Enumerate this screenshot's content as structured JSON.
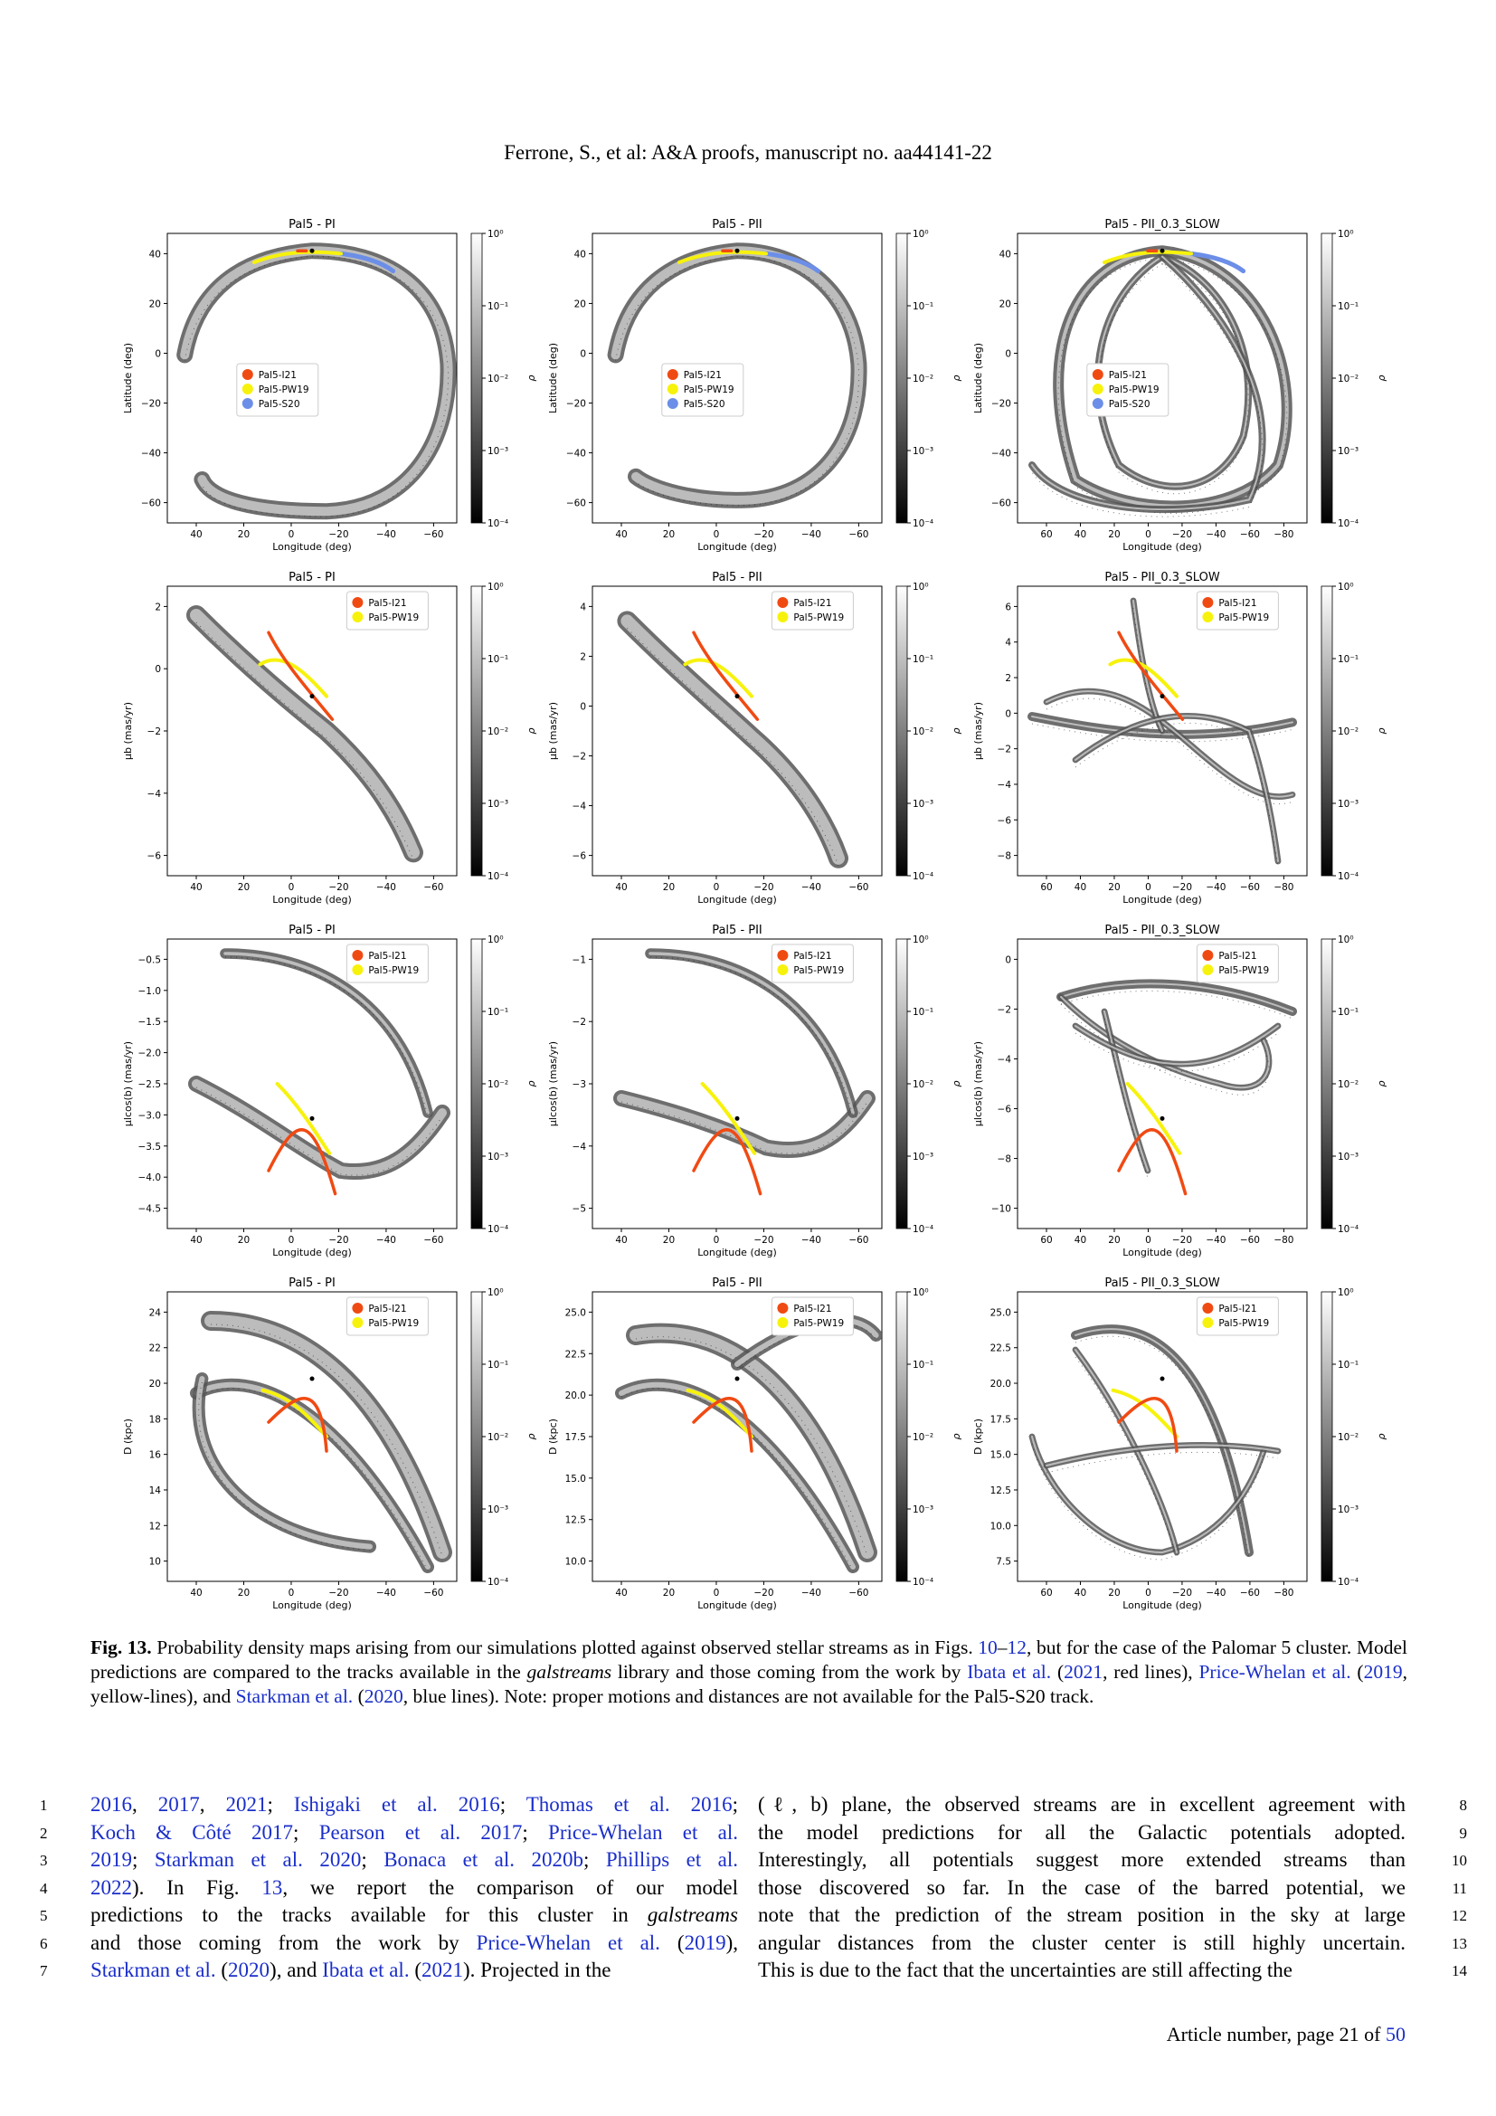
{
  "header": "Ferrone, S., et al: A&A proofs, manuscript no. aa44141-22",
  "colorbar": {
    "ticks": [
      "10⁰",
      "10⁻¹",
      "10⁻²",
      "10⁻³",
      "10⁻⁴"
    ],
    "label": "ρ"
  },
  "colors": {
    "i21": "#f04a13",
    "pw19": "#f7f20c",
    "s20": "#6b8ee8",
    "link": "#1a2ec9"
  },
  "rows": [
    {
      "ylabel": "Latitude (deg)",
      "panels": [
        {
          "title": "Pal5 - PI",
          "yticks": [
            "40",
            "20",
            "0",
            "−20",
            "−40",
            "−60"
          ],
          "xticks": [
            "40",
            "20",
            "0",
            "−20",
            "−40",
            "−60"
          ]
        },
        {
          "title": "Pal5 - PII",
          "yticks": [
            "40",
            "20",
            "0",
            "−20",
            "−40",
            "−60"
          ],
          "xticks": [
            "40",
            "20",
            "0",
            "−20",
            "−40",
            "−60"
          ]
        },
        {
          "title": "Pal5 - PII_0.3_SLOW",
          "yticks": [
            "40",
            "20",
            "0",
            "−20",
            "−40",
            "−60"
          ],
          "xticks": [
            "60",
            "40",
            "20",
            "0",
            "−20",
            "−40",
            "−60",
            "−80"
          ]
        }
      ],
      "legend": [
        "Pal5-I21",
        "Pal5-PW19",
        "Pal5-S20"
      ]
    },
    {
      "ylabel": "μb (mas/yr)",
      "panels": [
        {
          "title": "Pal5 - PI",
          "yticks": [
            "2",
            "0",
            "−2",
            "−4",
            "−6"
          ],
          "xticks": [
            "40",
            "20",
            "0",
            "−20",
            "−40",
            "−60"
          ]
        },
        {
          "title": "Pal5 - PII",
          "yticks": [
            "4",
            "2",
            "0",
            "−2",
            "−4",
            "−6"
          ],
          "xticks": [
            "40",
            "20",
            "0",
            "−20",
            "−40",
            "−60"
          ]
        },
        {
          "title": "Pal5 - PII_0.3_SLOW",
          "yticks": [
            "6",
            "4",
            "2",
            "0",
            "−2",
            "−4",
            "−6",
            "−8"
          ],
          "xticks": [
            "60",
            "40",
            "20",
            "0",
            "−20",
            "−40",
            "−60",
            "−80"
          ]
        }
      ],
      "legend": [
        "Pal5-I21",
        "Pal5-PW19"
      ]
    },
    {
      "ylabel": "μlcos(b) (mas/yr)",
      "panels": [
        {
          "title": "Pal5 - PI",
          "yticks": [
            "−0.5",
            "−1.0",
            "−1.5",
            "−2.0",
            "−2.5",
            "−3.0",
            "−3.5",
            "−4.0",
            "−4.5"
          ],
          "xticks": [
            "40",
            "20",
            "0",
            "−20",
            "−40",
            "−60"
          ]
        },
        {
          "title": "Pal5 - PII",
          "yticks": [
            "−1",
            "−2",
            "−3",
            "−4",
            "−5"
          ],
          "xticks": [
            "40",
            "20",
            "0",
            "−20",
            "−40",
            "−60"
          ]
        },
        {
          "title": "Pal5 - PII_0.3_SLOW",
          "yticks": [
            "0",
            "−2",
            "−4",
            "−6",
            "−8",
            "−10"
          ],
          "xticks": [
            "60",
            "40",
            "20",
            "0",
            "−20",
            "−40",
            "−60",
            "−80"
          ]
        }
      ],
      "legend": [
        "Pal5-I21",
        "Pal5-PW19"
      ]
    },
    {
      "ylabel": "D (kpc)",
      "panels": [
        {
          "title": "Pal5 - PI",
          "yticks": [
            "24",
            "22",
            "20",
            "18",
            "16",
            "14",
            "12",
            "10"
          ],
          "xticks": [
            "40",
            "20",
            "0",
            "−20",
            "−40",
            "−60"
          ]
        },
        {
          "title": "Pal5 - PII",
          "yticks": [
            "25.0",
            "22.5",
            "20.0",
            "17.5",
            "15.0",
            "12.5",
            "10.0"
          ],
          "xticks": [
            "40",
            "20",
            "0",
            "−20",
            "−40",
            "−60"
          ]
        },
        {
          "title": "Pal5 - PII_0.3_SLOW",
          "yticks": [
            "25.0",
            "22.5",
            "20.0",
            "17.5",
            "15.0",
            "12.5",
            "10.0",
            "7.5"
          ],
          "xticks": [
            "60",
            "40",
            "20",
            "0",
            "−20",
            "−40",
            "−60",
            "−80"
          ]
        }
      ],
      "legend": [
        "Pal5-I21",
        "Pal5-PW19"
      ]
    }
  ],
  "xlabel": "Longitude (deg)",
  "caption": {
    "label": "Fig. 13.",
    "t1": " Probability density maps arising from our simulations plotted against observed stellar streams as in Figs. ",
    "c1": "10",
    "t2": "–",
    "c2": "12",
    "t3": ", but for the case of the Palomar 5 cluster. Model predictions are compared to the tracks available in the ",
    "em": "galstreams",
    "t4": " library and those coming from the work by ",
    "c3": "Ibata et al.",
    "t5": " (",
    "c4": "2021",
    "t6": ", red lines), ",
    "c5": "Price-Whelan et al.",
    "t7": " (",
    "c6": "2019",
    "t8": ", yellow-lines), and ",
    "c7": "Starkman et al.",
    "t9": " (",
    "c8": "2020",
    "t10": ", blue lines). Note: proper motions and distances are not available for the Pal5-S20 track."
  },
  "left_lines": [
    [
      [
        "c",
        "2016"
      ],
      [
        "t",
        ", "
      ],
      [
        "c",
        "2017"
      ],
      [
        "t",
        ", "
      ],
      [
        "c",
        "2021"
      ],
      [
        "t",
        "; "
      ],
      [
        "c",
        "Ishigaki et al. 2016"
      ],
      [
        "t",
        "; "
      ],
      [
        "c",
        "Thomas et al. 2016"
      ],
      [
        "t",
        ";"
      ]
    ],
    [
      [
        "c",
        "Koch & Côté 2017"
      ],
      [
        "t",
        "; "
      ],
      [
        "c",
        "Pearson et al. 2017"
      ],
      [
        "t",
        "; "
      ],
      [
        "c",
        "Price-Whelan et al."
      ]
    ],
    [
      [
        "c",
        "2019"
      ],
      [
        "t",
        "; "
      ],
      [
        "c",
        "Starkman et al. 2020"
      ],
      [
        "t",
        "; "
      ],
      [
        "c",
        "Bonaca et al. 2020b"
      ],
      [
        "t",
        "; "
      ],
      [
        "c",
        "Phillips et al."
      ]
    ],
    [
      [
        "c",
        "2022"
      ],
      [
        "t",
        "). In Fig. "
      ],
      [
        "c",
        "13"
      ],
      [
        "t",
        ", we report the comparison of our model"
      ]
    ],
    [
      [
        "t",
        "predictions to the tracks available for this cluster in "
      ],
      [
        "i",
        "galstreams"
      ]
    ],
    [
      [
        "t",
        "and those coming from the work by "
      ],
      [
        "c",
        "Price-Whelan et al."
      ],
      [
        "t",
        " ("
      ],
      [
        "c",
        "2019"
      ],
      [
        "t",
        "),"
      ]
    ],
    [
      [
        "c",
        "Starkman et al."
      ],
      [
        "t",
        " ("
      ],
      [
        "c",
        "2020"
      ],
      [
        "t",
        "), and "
      ],
      [
        "c",
        "Ibata et al."
      ],
      [
        "t",
        " ("
      ],
      [
        "c",
        "2021"
      ],
      [
        "t",
        "). Projected in the"
      ]
    ]
  ],
  "right_lines": [
    "(ℓ, b) plane, the observed streams are in excellent agreement with",
    "the model predictions for all the Galactic potentials adopted.",
    "Interestingly, all potentials suggest more extended streams than",
    "those discovered so far. In the case of the barred potential, we",
    "note that the prediction of the stream position in the sky at large",
    "angular distances from the cluster center is still highly uncertain.",
    "This is due to the fact that the uncertainties are still affecting the"
  ],
  "left_nums": [
    "1",
    "2",
    "3",
    "4",
    "5",
    "6",
    "7"
  ],
  "right_nums": [
    "8",
    "9",
    "10",
    "11",
    "12",
    "13",
    "14"
  ],
  "footer": {
    "text": "Article number, page 21 of ",
    "link": "50"
  }
}
